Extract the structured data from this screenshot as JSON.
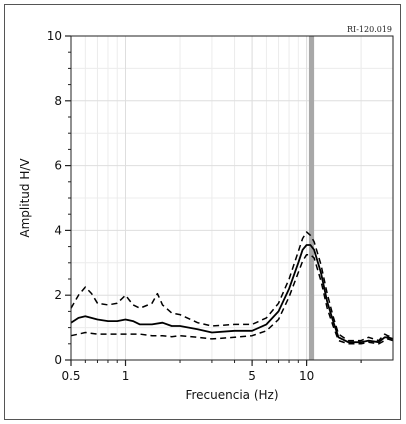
{
  "chart_data": {
    "type": "line",
    "code_label": "RI-120.019",
    "xlabel": "Frecuencia (Hz)",
    "ylabel": "Amplitud H/V",
    "x_scale": "log",
    "xlim": [
      0.5,
      30
    ],
    "ylim": [
      0,
      10
    ],
    "x_ticks": [
      {
        "value": 0.5,
        "label": "0.5"
      },
      {
        "value": 1,
        "label": "1"
      },
      {
        "value": 5,
        "label": "5"
      },
      {
        "value": 10,
        "label": "10"
      }
    ],
    "y_ticks": [
      {
        "value": 0,
        "label": "0"
      },
      {
        "value": 2,
        "label": "2"
      },
      {
        "value": 4,
        "label": "4"
      },
      {
        "value": 6,
        "label": "6"
      },
      {
        "value": 8,
        "label": "8"
      },
      {
        "value": 10,
        "label": "10"
      }
    ],
    "grid": true,
    "peak_band": {
      "from": 10.3,
      "to": 11.0,
      "color": "#a8a8a8"
    },
    "series": [
      {
        "style": "solid",
        "x": [
          0.5,
          0.55,
          0.6,
          0.7,
          0.8,
          0.9,
          1.0,
          1.1,
          1.2,
          1.4,
          1.6,
          1.8,
          2.0,
          2.5,
          3.0,
          4.0,
          5.0,
          6.0,
          7.0,
          8.0,
          9.0,
          9.5,
          10.0,
          10.5,
          11.0,
          12.0,
          13.0,
          14.0,
          15.0,
          17.0,
          20.0,
          22.0,
          25.0,
          27.0,
          28.0,
          30.0
        ],
        "y": [
          1.15,
          1.3,
          1.35,
          1.25,
          1.2,
          1.2,
          1.25,
          1.2,
          1.1,
          1.1,
          1.15,
          1.05,
          1.05,
          0.95,
          0.85,
          0.9,
          0.9,
          1.1,
          1.5,
          2.2,
          3.0,
          3.4,
          3.55,
          3.55,
          3.4,
          2.7,
          1.8,
          1.2,
          0.7,
          0.55,
          0.55,
          0.6,
          0.55,
          0.7,
          0.7,
          0.65
        ]
      },
      {
        "style": "dashed",
        "x": [
          0.5,
          0.55,
          0.6,
          0.65,
          0.7,
          0.8,
          0.9,
          1.0,
          1.1,
          1.2,
          1.4,
          1.5,
          1.6,
          1.8,
          2.0,
          2.5,
          3.0,
          4.0,
          5.0,
          6.0,
          7.0,
          8.0,
          9.0,
          9.5,
          10.0,
          10.5,
          11.0,
          12.0,
          13.0,
          14.0,
          15.0,
          17.0,
          20.0,
          22.0,
          25.0,
          27.0,
          28.0,
          30.0
        ],
        "y": [
          1.6,
          2.0,
          2.25,
          2.05,
          1.75,
          1.7,
          1.75,
          2.0,
          1.7,
          1.6,
          1.75,
          2.05,
          1.7,
          1.45,
          1.4,
          1.15,
          1.05,
          1.1,
          1.1,
          1.3,
          1.75,
          2.5,
          3.35,
          3.75,
          3.95,
          3.85,
          3.65,
          2.95,
          2.05,
          1.35,
          0.8,
          0.6,
          0.6,
          0.7,
          0.6,
          0.8,
          0.75,
          0.7
        ]
      },
      {
        "style": "dashed",
        "x": [
          0.5,
          0.55,
          0.6,
          0.7,
          0.8,
          0.9,
          1.0,
          1.2,
          1.4,
          1.6,
          1.8,
          2.0,
          2.5,
          3.0,
          4.0,
          5.0,
          6.0,
          7.0,
          8.0,
          9.0,
          9.5,
          10.0,
          10.5,
          11.0,
          12.0,
          13.0,
          14.0,
          15.0,
          17.0,
          20.0,
          22.0,
          25.0,
          27.0,
          28.0,
          30.0
        ],
        "y": [
          0.75,
          0.8,
          0.85,
          0.8,
          0.8,
          0.8,
          0.8,
          0.8,
          0.75,
          0.75,
          0.72,
          0.75,
          0.7,
          0.65,
          0.7,
          0.75,
          0.9,
          1.25,
          1.95,
          2.7,
          3.05,
          3.25,
          3.25,
          3.15,
          2.45,
          1.6,
          1.05,
          0.6,
          0.5,
          0.5,
          0.55,
          0.5,
          0.6,
          0.65,
          0.6
        ]
      }
    ]
  }
}
